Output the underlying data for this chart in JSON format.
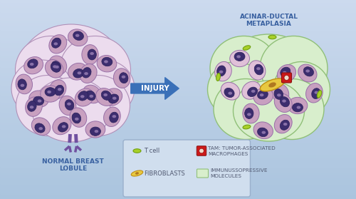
{
  "bg_left": "#b0c8e0",
  "bg_right": "#ccdaee",
  "lobule_outer_fill": "#ecdcee",
  "lobule_outer_edge": "#b090b8",
  "acinus_fill": "#c8a0c0",
  "acinus_edge": "#9870a8",
  "acinus_stipple": "#b890b8",
  "nucleus_fill": "#3c2d6e",
  "nucleus_edge": "#28205a",
  "nucleolus_fill": "#6a5898",
  "duct_color": "#7050a0",
  "adm_outer_fill": "#d8eecc",
  "adm_outer_edge": "#90c078",
  "adm_inner_fill": "#e8d8ec",
  "fibroblast_fill": "#e8c840",
  "fibroblast_edge": "#c09010",
  "fibroblast_nucleus": "#b07820",
  "tcell_fill": "#a8d028",
  "tcell_edge": "#70a010",
  "tam_fill": "#cc1818",
  "tam_edge": "#881010",
  "tam_center_fill": "#f0d8c8",
  "legend_bg": "#d0deee",
  "legend_edge": "#9ab0cc",
  "text_color": "#505870",
  "label_color": "#3860a0",
  "arrow_color": "#3a70b8",
  "left_label": "NORMAL BREAST\nLOBULE",
  "right_label": "ACINAR-DUCTAL\nMETAPLASIA",
  "arrow_label": "INJURY"
}
